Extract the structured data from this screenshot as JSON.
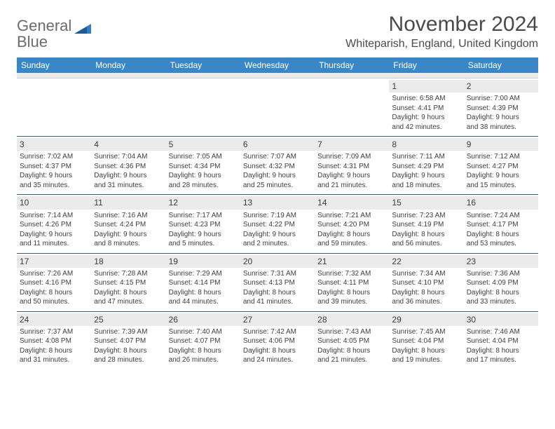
{
  "brand": {
    "word1": "General",
    "word2": "Blue"
  },
  "header": {
    "month_title": "November 2024",
    "location": "Whiteparish, England, United Kingdom"
  },
  "style": {
    "header_bg": "#3a87c7",
    "header_text": "#ffffff",
    "row_divider": "#375f85",
    "daynum_bg": "#ebebeb",
    "body_text": "#3d3d3d",
    "page_bg": "#ffffff",
    "logo_gray": "#6b6b6b",
    "logo_blue": "#2f7fc2",
    "font_day": 10,
    "font_daynum": 12,
    "font_weekday": 12,
    "font_month": 30,
    "font_location": 16
  },
  "weekdays": [
    "Sunday",
    "Monday",
    "Tuesday",
    "Wednesday",
    "Thursday",
    "Friday",
    "Saturday"
  ],
  "weeks": [
    [
      {
        "num": "",
        "sunrise": "",
        "sunset": "",
        "day1": "",
        "day2": ""
      },
      {
        "num": "",
        "sunrise": "",
        "sunset": "",
        "day1": "",
        "day2": ""
      },
      {
        "num": "",
        "sunrise": "",
        "sunset": "",
        "day1": "",
        "day2": ""
      },
      {
        "num": "",
        "sunrise": "",
        "sunset": "",
        "day1": "",
        "day2": ""
      },
      {
        "num": "",
        "sunrise": "",
        "sunset": "",
        "day1": "",
        "day2": ""
      },
      {
        "num": "1",
        "sunrise": "Sunrise: 6:58 AM",
        "sunset": "Sunset: 4:41 PM",
        "day1": "Daylight: 9 hours",
        "day2": "and 42 minutes."
      },
      {
        "num": "2",
        "sunrise": "Sunrise: 7:00 AM",
        "sunset": "Sunset: 4:39 PM",
        "day1": "Daylight: 9 hours",
        "day2": "and 38 minutes."
      }
    ],
    [
      {
        "num": "3",
        "sunrise": "Sunrise: 7:02 AM",
        "sunset": "Sunset: 4:37 PM",
        "day1": "Daylight: 9 hours",
        "day2": "and 35 minutes."
      },
      {
        "num": "4",
        "sunrise": "Sunrise: 7:04 AM",
        "sunset": "Sunset: 4:36 PM",
        "day1": "Daylight: 9 hours",
        "day2": "and 31 minutes."
      },
      {
        "num": "5",
        "sunrise": "Sunrise: 7:05 AM",
        "sunset": "Sunset: 4:34 PM",
        "day1": "Daylight: 9 hours",
        "day2": "and 28 minutes."
      },
      {
        "num": "6",
        "sunrise": "Sunrise: 7:07 AM",
        "sunset": "Sunset: 4:32 PM",
        "day1": "Daylight: 9 hours",
        "day2": "and 25 minutes."
      },
      {
        "num": "7",
        "sunrise": "Sunrise: 7:09 AM",
        "sunset": "Sunset: 4:31 PM",
        "day1": "Daylight: 9 hours",
        "day2": "and 21 minutes."
      },
      {
        "num": "8",
        "sunrise": "Sunrise: 7:11 AM",
        "sunset": "Sunset: 4:29 PM",
        "day1": "Daylight: 9 hours",
        "day2": "and 18 minutes."
      },
      {
        "num": "9",
        "sunrise": "Sunrise: 7:12 AM",
        "sunset": "Sunset: 4:27 PM",
        "day1": "Daylight: 9 hours",
        "day2": "and 15 minutes."
      }
    ],
    [
      {
        "num": "10",
        "sunrise": "Sunrise: 7:14 AM",
        "sunset": "Sunset: 4:26 PM",
        "day1": "Daylight: 9 hours",
        "day2": "and 11 minutes."
      },
      {
        "num": "11",
        "sunrise": "Sunrise: 7:16 AM",
        "sunset": "Sunset: 4:24 PM",
        "day1": "Daylight: 9 hours",
        "day2": "and 8 minutes."
      },
      {
        "num": "12",
        "sunrise": "Sunrise: 7:17 AM",
        "sunset": "Sunset: 4:23 PM",
        "day1": "Daylight: 9 hours",
        "day2": "and 5 minutes."
      },
      {
        "num": "13",
        "sunrise": "Sunrise: 7:19 AM",
        "sunset": "Sunset: 4:22 PM",
        "day1": "Daylight: 9 hours",
        "day2": "and 2 minutes."
      },
      {
        "num": "14",
        "sunrise": "Sunrise: 7:21 AM",
        "sunset": "Sunset: 4:20 PM",
        "day1": "Daylight: 8 hours",
        "day2": "and 59 minutes."
      },
      {
        "num": "15",
        "sunrise": "Sunrise: 7:23 AM",
        "sunset": "Sunset: 4:19 PM",
        "day1": "Daylight: 8 hours",
        "day2": "and 56 minutes."
      },
      {
        "num": "16",
        "sunrise": "Sunrise: 7:24 AM",
        "sunset": "Sunset: 4:17 PM",
        "day1": "Daylight: 8 hours",
        "day2": "and 53 minutes."
      }
    ],
    [
      {
        "num": "17",
        "sunrise": "Sunrise: 7:26 AM",
        "sunset": "Sunset: 4:16 PM",
        "day1": "Daylight: 8 hours",
        "day2": "and 50 minutes."
      },
      {
        "num": "18",
        "sunrise": "Sunrise: 7:28 AM",
        "sunset": "Sunset: 4:15 PM",
        "day1": "Daylight: 8 hours",
        "day2": "and 47 minutes."
      },
      {
        "num": "19",
        "sunrise": "Sunrise: 7:29 AM",
        "sunset": "Sunset: 4:14 PM",
        "day1": "Daylight: 8 hours",
        "day2": "and 44 minutes."
      },
      {
        "num": "20",
        "sunrise": "Sunrise: 7:31 AM",
        "sunset": "Sunset: 4:13 PM",
        "day1": "Daylight: 8 hours",
        "day2": "and 41 minutes."
      },
      {
        "num": "21",
        "sunrise": "Sunrise: 7:32 AM",
        "sunset": "Sunset: 4:11 PM",
        "day1": "Daylight: 8 hours",
        "day2": "and 39 minutes."
      },
      {
        "num": "22",
        "sunrise": "Sunrise: 7:34 AM",
        "sunset": "Sunset: 4:10 PM",
        "day1": "Daylight: 8 hours",
        "day2": "and 36 minutes."
      },
      {
        "num": "23",
        "sunrise": "Sunrise: 7:36 AM",
        "sunset": "Sunset: 4:09 PM",
        "day1": "Daylight: 8 hours",
        "day2": "and 33 minutes."
      }
    ],
    [
      {
        "num": "24",
        "sunrise": "Sunrise: 7:37 AM",
        "sunset": "Sunset: 4:08 PM",
        "day1": "Daylight: 8 hours",
        "day2": "and 31 minutes."
      },
      {
        "num": "25",
        "sunrise": "Sunrise: 7:39 AM",
        "sunset": "Sunset: 4:07 PM",
        "day1": "Daylight: 8 hours",
        "day2": "and 28 minutes."
      },
      {
        "num": "26",
        "sunrise": "Sunrise: 7:40 AM",
        "sunset": "Sunset: 4:07 PM",
        "day1": "Daylight: 8 hours",
        "day2": "and 26 minutes."
      },
      {
        "num": "27",
        "sunrise": "Sunrise: 7:42 AM",
        "sunset": "Sunset: 4:06 PM",
        "day1": "Daylight: 8 hours",
        "day2": "and 24 minutes."
      },
      {
        "num": "28",
        "sunrise": "Sunrise: 7:43 AM",
        "sunset": "Sunset: 4:05 PM",
        "day1": "Daylight: 8 hours",
        "day2": "and 21 minutes."
      },
      {
        "num": "29",
        "sunrise": "Sunrise: 7:45 AM",
        "sunset": "Sunset: 4:04 PM",
        "day1": "Daylight: 8 hours",
        "day2": "and 19 minutes."
      },
      {
        "num": "30",
        "sunrise": "Sunrise: 7:46 AM",
        "sunset": "Sunset: 4:04 PM",
        "day1": "Daylight: 8 hours",
        "day2": "and 17 minutes."
      }
    ]
  ]
}
